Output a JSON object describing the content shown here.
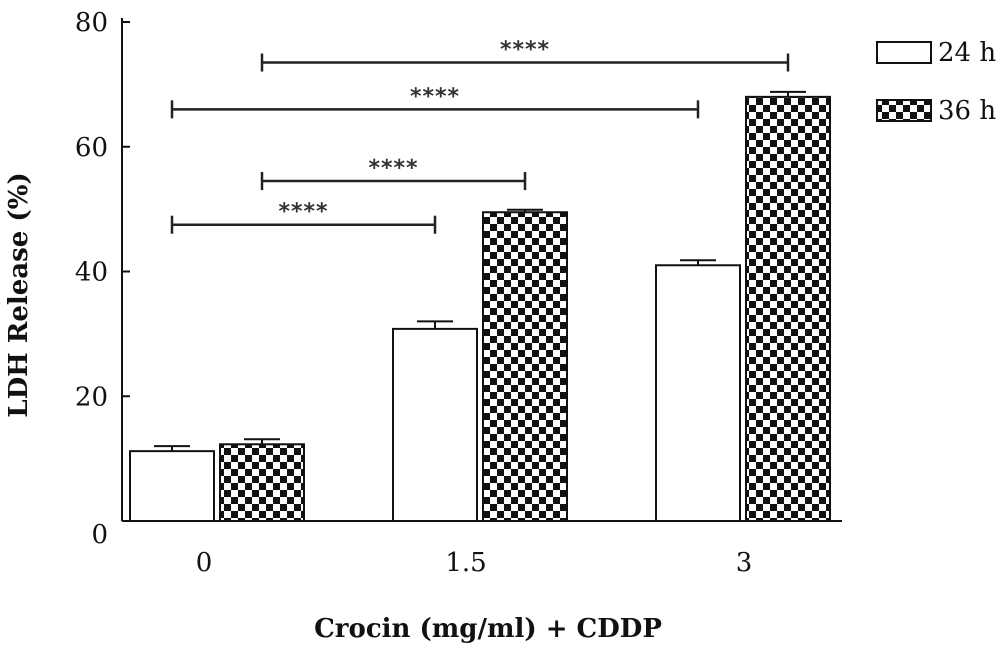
{
  "chart_data": {
    "type": "bar",
    "title": "",
    "xlabel": "Crocin (mg/ml) + CDDP",
    "ylabel": "LDH Release (%)",
    "ylim": [
      0,
      80
    ],
    "yticks": [
      0,
      20,
      40,
      60,
      80
    ],
    "categories": [
      "0",
      "1.5",
      "3"
    ],
    "series": [
      {
        "name": "24 h",
        "values": [
          11.2,
          30.8,
          41.0
        ],
        "errors": [
          0.8,
          1.2,
          0.8
        ],
        "fill": "white"
      },
      {
        "name": "36 h",
        "values": [
          12.3,
          49.5,
          68.0
        ],
        "errors": [
          0.8,
          0.4,
          0.8
        ],
        "fill": "checkerboard"
      }
    ],
    "legend": {
      "position": "top-right",
      "entries": [
        "24 h",
        "36 h"
      ]
    },
    "grid": false,
    "significance": [
      {
        "label": "****",
        "from": [
          0,
          "36 h"
        ],
        "to": [
          2,
          "36 h"
        ],
        "level": 73.5
      },
      {
        "label": "****",
        "from": [
          0,
          "24 h"
        ],
        "to": [
          2,
          "24 h"
        ],
        "level": 66.0
      },
      {
        "label": "****",
        "from": [
          0,
          "36 h"
        ],
        "to": [
          1,
          "36 h"
        ],
        "level": 54.5
      },
      {
        "label": "****",
        "from": [
          0,
          "24 h"
        ],
        "to": [
          1,
          "24 h"
        ],
        "level": 47.5
      }
    ]
  }
}
